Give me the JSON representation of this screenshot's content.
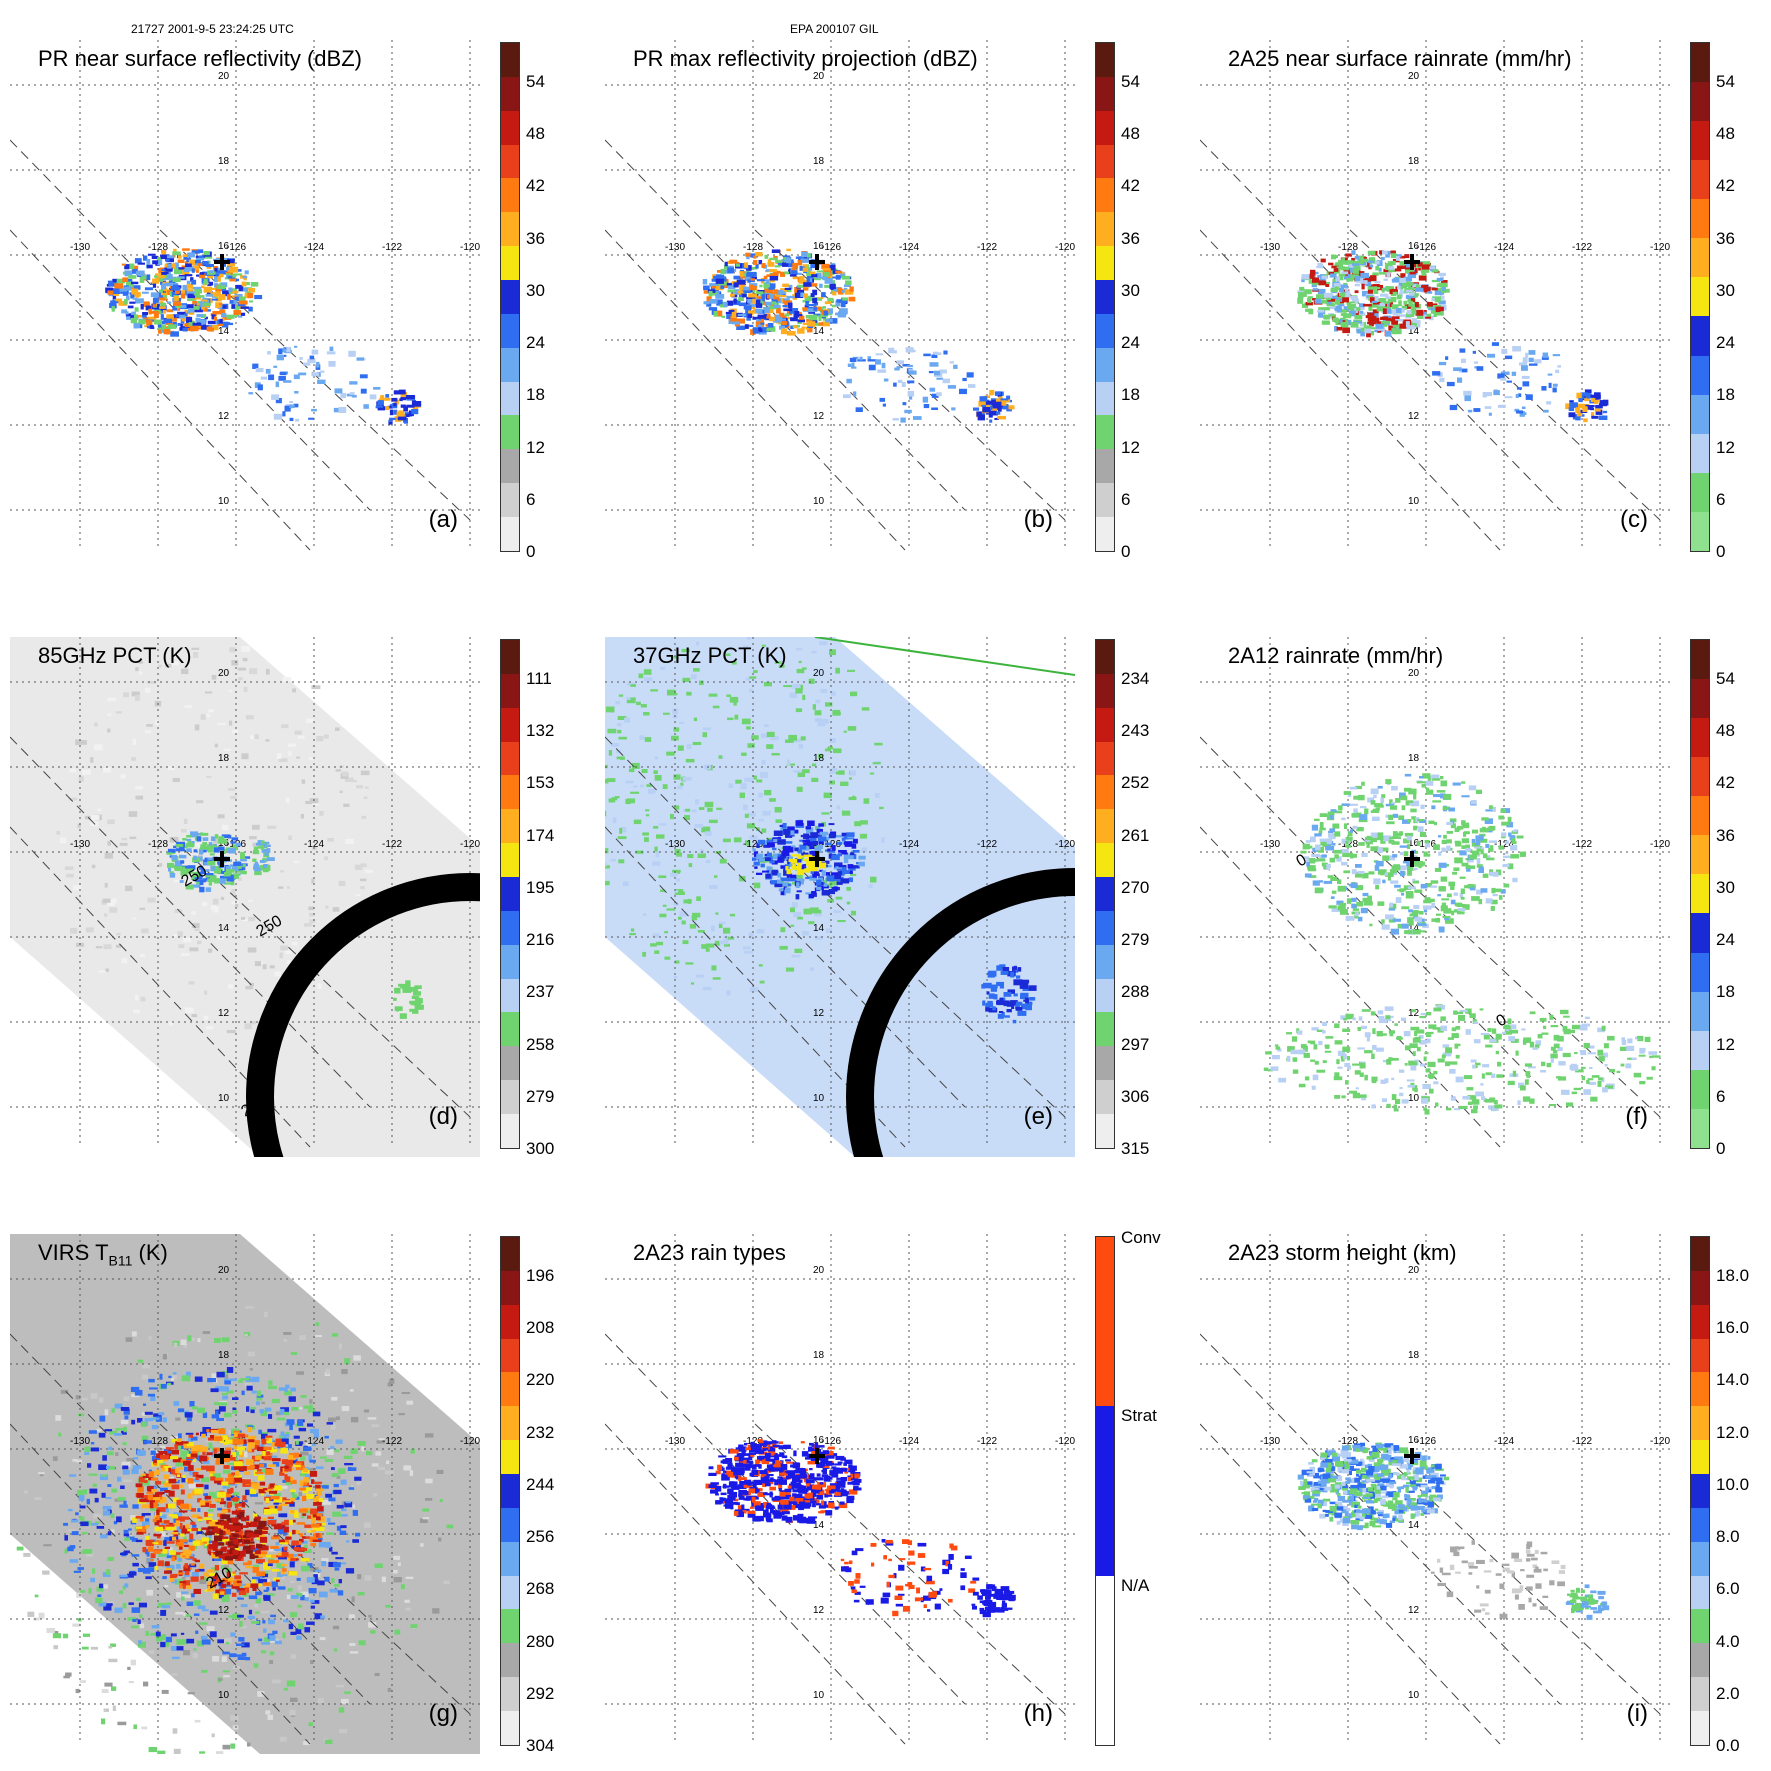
{
  "header": {
    "orbit_time": "21727 2001-9-5 23:24:25 UTC",
    "storm": "EPA 200107 GIL"
  },
  "axes": {
    "lon_labels": [
      "-130",
      "-128",
      "-126",
      "-124",
      "-122",
      "-120"
    ],
    "lat_labels": [
      "20",
      "18",
      "16",
      "14",
      "12",
      "10"
    ]
  },
  "panels": [
    {
      "id": "a",
      "title": "PR near surface reflectivity (dBZ)",
      "label": "(a)",
      "colorbar": {
        "ticks": [
          "54",
          "48",
          "42",
          "36",
          "30",
          "24",
          "18",
          "12",
          "6",
          "0"
        ],
        "colors": [
          "#5a1a10",
          "#8a1515",
          "#c41a12",
          "#e8401a",
          "#ff7a10",
          "#ffae20",
          "#f5e612",
          "#1a2bd6",
          "#2f6ef0",
          "#6aa8f0",
          "#b9d0f5",
          "#6fd46f",
          "#a8a8a8",
          "#cfcfcf",
          "#eeeeee"
        ]
      }
    },
    {
      "id": "b",
      "title": "PR max reflectivity projection (dBZ)",
      "label": "(b)",
      "colorbar": {
        "ticks": [
          "54",
          "48",
          "42",
          "36",
          "30",
          "24",
          "18",
          "12",
          "6",
          "0"
        ],
        "colors": [
          "#5a1a10",
          "#8a1515",
          "#c41a12",
          "#e8401a",
          "#ff7a10",
          "#ffae20",
          "#f5e612",
          "#1a2bd6",
          "#2f6ef0",
          "#6aa8f0",
          "#b9d0f5",
          "#6fd46f",
          "#a8a8a8",
          "#cfcfcf",
          "#eeeeee"
        ]
      }
    },
    {
      "id": "c",
      "title": "2A25 near surface rainrate (mm/hr)",
      "label": "(c)",
      "colorbar": {
        "ticks": [
          "54",
          "48",
          "42",
          "36",
          "30",
          "24",
          "18",
          "12",
          "6",
          "0"
        ],
        "colors": [
          "#5a1a10",
          "#8a1515",
          "#c41a12",
          "#e8401a",
          "#ff7a10",
          "#ffae20",
          "#f5e612",
          "#1a2bd6",
          "#2f6ef0",
          "#6aa8f0",
          "#b9d0f5",
          "#6fd46f",
          "#8fe08f"
        ]
      }
    },
    {
      "id": "d",
      "title": "85GHz PCT (K)",
      "label": "(d)",
      "colorbar": {
        "ticks": [
          "111",
          "132",
          "153",
          "174",
          "195",
          "216",
          "237",
          "258",
          "279",
          "300"
        ],
        "colors": [
          "#5a1a10",
          "#8a1515",
          "#c41a12",
          "#e8401a",
          "#ff7a10",
          "#ffae20",
          "#f5e612",
          "#1a2bd6",
          "#2f6ef0",
          "#6aa8f0",
          "#b9d0f5",
          "#6fd46f",
          "#a8a8a8",
          "#cfcfcf",
          "#eeeeee"
        ]
      },
      "contour_labels": [
        "250",
        "250",
        "250"
      ]
    },
    {
      "id": "e",
      "title": "37GHz PCT (K)",
      "label": "(e)",
      "colorbar": {
        "ticks": [
          "234",
          "243",
          "252",
          "261",
          "270",
          "279",
          "288",
          "297",
          "306",
          "315"
        ],
        "colors": [
          "#5a1a10",
          "#8a1515",
          "#c41a12",
          "#e8401a",
          "#ff7a10",
          "#ffae20",
          "#f5e612",
          "#1a2bd6",
          "#2f6ef0",
          "#6aa8f0",
          "#b9d0f5",
          "#6fd46f",
          "#a8a8a8",
          "#cfcfcf",
          "#eeeeee"
        ]
      }
    },
    {
      "id": "f",
      "title": "2A12 rainrate (mm/hr)",
      "label": "(f)",
      "colorbar": {
        "ticks": [
          "54",
          "48",
          "42",
          "36",
          "30",
          "24",
          "18",
          "12",
          "6",
          "0"
        ],
        "colors": [
          "#5a1a10",
          "#8a1515",
          "#c41a12",
          "#e8401a",
          "#ff7a10",
          "#ffae20",
          "#f5e612",
          "#1a2bd6",
          "#2f6ef0",
          "#6aa8f0",
          "#b9d0f5",
          "#6fd46f",
          "#8fe08f"
        ]
      },
      "contour_labels": [
        "0",
        "0"
      ]
    },
    {
      "id": "g",
      "title_main": "VIRS T",
      "title_sub": "B11",
      "title_unit": " (K)",
      "label": "(g)",
      "colorbar": {
        "ticks": [
          "196",
          "208",
          "220",
          "232",
          "244",
          "256",
          "268",
          "280",
          "292",
          "304"
        ],
        "colors": [
          "#5a1a10",
          "#8a1515",
          "#c41a12",
          "#e8401a",
          "#ff7a10",
          "#ffae20",
          "#f5e612",
          "#1a2bd6",
          "#2f6ef0",
          "#6aa8f0",
          "#b9d0f5",
          "#6fd46f",
          "#a8a8a8",
          "#cfcfcf",
          "#eeeeee"
        ]
      },
      "contour_labels": [
        "210"
      ]
    },
    {
      "id": "h",
      "title": "2A23 rain types",
      "label": "(h)",
      "colorbar": {
        "ticks": [
          "Conv",
          "Strat",
          "N/A"
        ],
        "colors": [
          "#ff4a10",
          "#1a1ae6",
          "#ffffff"
        ]
      }
    },
    {
      "id": "i",
      "title": "2A23 storm height (km)",
      "label": "(i)",
      "colorbar": {
        "ticks": [
          "18.0",
          "16.0",
          "14.0",
          "12.0",
          "10.0",
          "8.0",
          "6.0",
          "4.0",
          "2.0",
          "0.0"
        ],
        "colors": [
          "#5a1a10",
          "#8a1515",
          "#c41a12",
          "#e8401a",
          "#ff7a10",
          "#ffae20",
          "#f5e612",
          "#1a2bd6",
          "#2f6ef0",
          "#6aa8f0",
          "#b9d0f5",
          "#6fd46f",
          "#a8a8a8",
          "#cfcfcf",
          "#eeeeee"
        ]
      }
    }
  ]
}
